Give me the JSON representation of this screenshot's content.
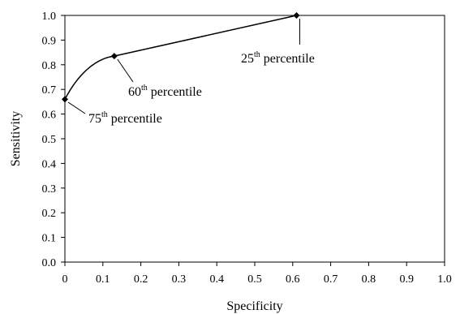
{
  "chart_data": {
    "type": "line",
    "title": "",
    "xlabel": "Specificity",
    "ylabel": "Sensitivity",
    "xlim": [
      0,
      1
    ],
    "ylim": [
      0,
      1
    ],
    "xticks": [
      "0",
      "0.1",
      "0.2",
      "0.3",
      "0.4",
      "0.5",
      "0.6",
      "0.7",
      "0.8",
      "0.9",
      "1.0"
    ],
    "yticks": [
      "0.0",
      "0.1",
      "0.2",
      "0.3",
      "0.4",
      "0.5",
      "0.6",
      "0.7",
      "0.8",
      "0.9",
      "1.0"
    ],
    "grid": false,
    "legend": "none",
    "series": [
      {
        "x": [
          0.0,
          0.13,
          0.61
        ],
        "y": [
          0.66,
          0.835,
          1.0
        ],
        "color": "#000000",
        "marker": "diamond"
      }
    ],
    "annotations": [
      {
        "prefix": "25",
        "sup": "th",
        "suffix": " percentile"
      },
      {
        "prefix": "60",
        "sup": "th",
        "suffix": " percentile"
      },
      {
        "prefix": "75",
        "sup": "th",
        "suffix": " percentile"
      }
    ]
  }
}
